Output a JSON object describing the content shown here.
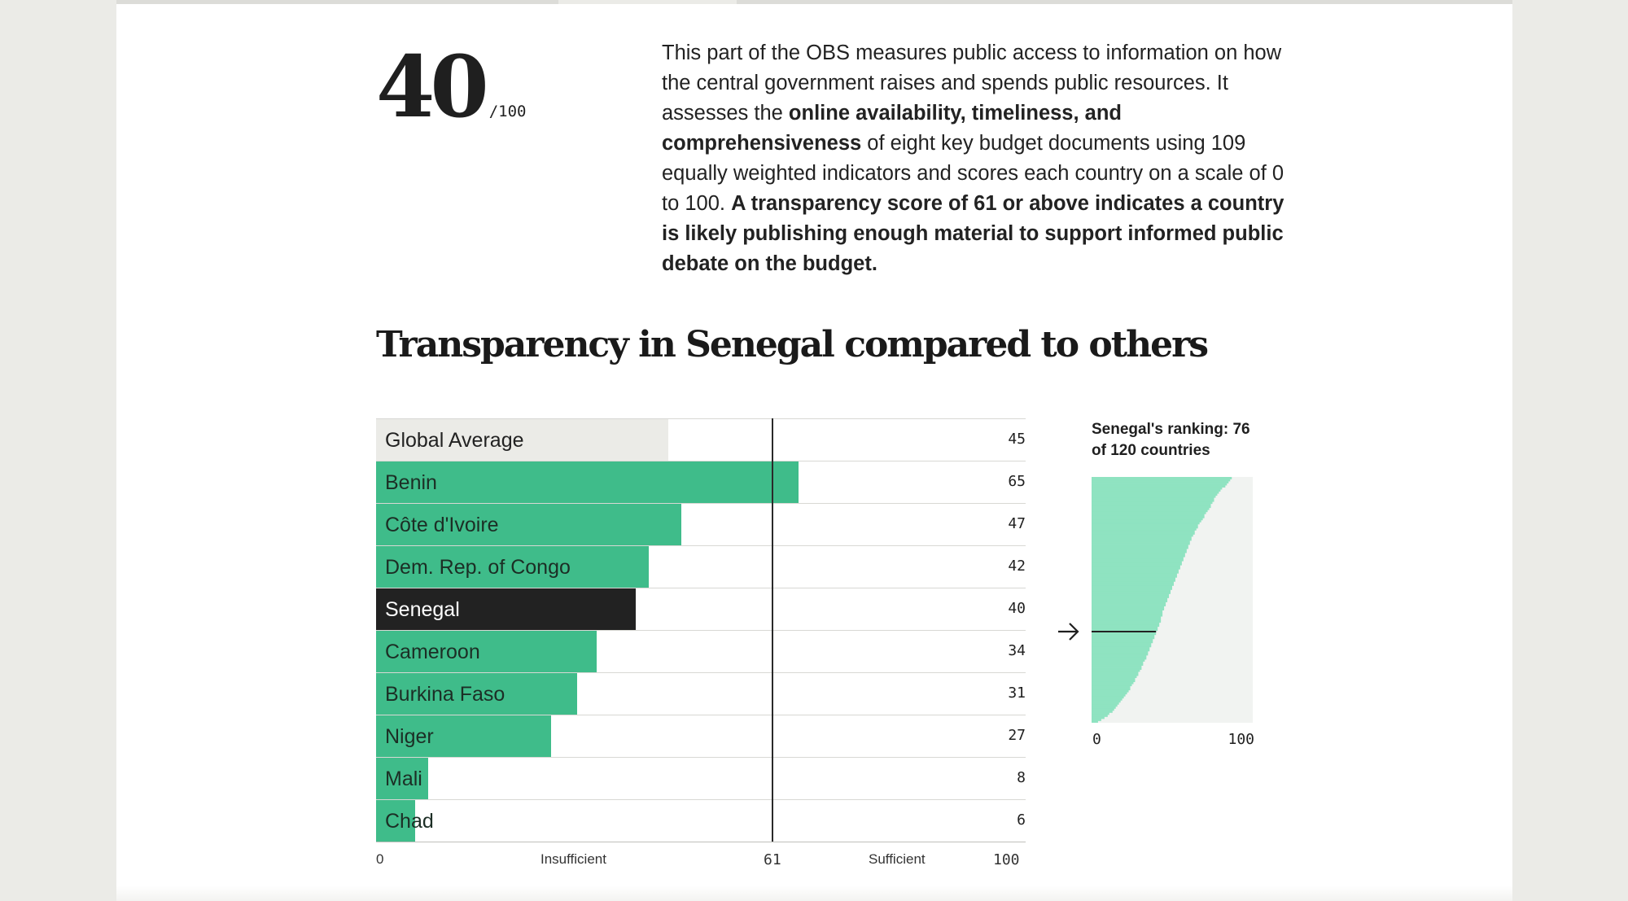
{
  "score": {
    "value": "40",
    "max": "/100"
  },
  "intro": {
    "p1": "This part of the OBS measures public access to information on how the central government raises and spends public resources. It assesses the ",
    "b1": "online availability, timeliness, and comprehensiveness",
    "p2": " of eight key budget documents using 109 equally weighted indicators and scores each country on a scale of 0 to 100. ",
    "b2": "A transparency score of 61 or above indicates a country is likely publishing enough material to support informed public debate on the budget."
  },
  "colors": {
    "green": "#3fbc8a",
    "highlight": "#222222",
    "average": "#ebebe7",
    "rank_fill": "#8fe3c1",
    "rank_bg": "#f1f3f1",
    "threshold": "#2a2a2a"
  },
  "arrow_icon": "arrow-right-icon",
  "chart_data": [
    {
      "type": "bar",
      "orientation": "horizontal",
      "title": "Transparency in Senegal compared to others",
      "categories": [
        "Global Average",
        "Benin",
        "Côte d'Ivoire",
        "Dem. Rep. of Congo",
        "Senegal",
        "Cameroon",
        "Burkina Faso",
        "Niger",
        "Mali",
        "Chad"
      ],
      "values": [
        45,
        65,
        47,
        42,
        40,
        34,
        31,
        27,
        8,
        6
      ],
      "highlight": "Senegal",
      "reference": "Global Average",
      "xlim": [
        0,
        100
      ],
      "threshold": 61,
      "axis": {
        "min_label": "0",
        "threshold_label": "61",
        "max_label": "100",
        "below_label": "Insufficient",
        "above_label": "Sufficient"
      }
    },
    {
      "type": "area",
      "title": "Senegal's ranking: 76 of 120 countries",
      "rank": 76,
      "total": 120,
      "country_score": 40,
      "xlim": [
        0,
        100
      ],
      "x_tick_labels": [
        "0",
        "100"
      ],
      "sorted_scores_desc": [
        87,
        86,
        85,
        84,
        83,
        81,
        80,
        79,
        78,
        77,
        76,
        76,
        75,
        74,
        74,
        73,
        72,
        71,
        70,
        70,
        69,
        68,
        67,
        66,
        66,
        65,
        64,
        64,
        63,
        62,
        62,
        61,
        61,
        60,
        60,
        59,
        59,
        58,
        58,
        57,
        57,
        56,
        56,
        55,
        55,
        54,
        54,
        53,
        53,
        52,
        52,
        51,
        51,
        50,
        50,
        49,
        49,
        48,
        48,
        47,
        47,
        46,
        46,
        45,
        45,
        44,
        44,
        44,
        43,
        43,
        43,
        42,
        42,
        41,
        41,
        40,
        40,
        39,
        39,
        38,
        38,
        37,
        37,
        36,
        36,
        35,
        35,
        34,
        34,
        33,
        32,
        32,
        31,
        31,
        30,
        29,
        29,
        28,
        27,
        27,
        26,
        25,
        24,
        24,
        23,
        22,
        21,
        20,
        19,
        18,
        17,
        16,
        15,
        14,
        13,
        11,
        10,
        8,
        6,
        4
      ]
    }
  ]
}
